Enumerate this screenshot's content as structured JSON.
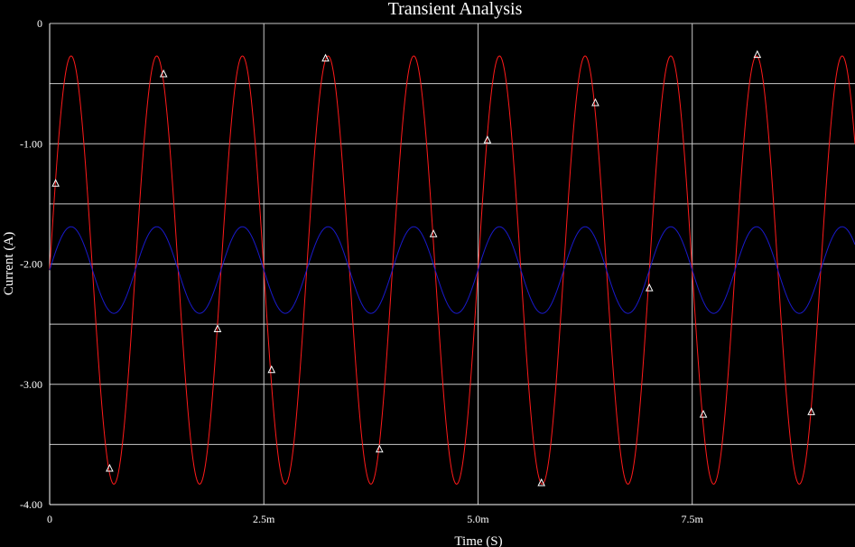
{
  "chart_data": {
    "type": "line",
    "title": "Transient Analysis",
    "xlabel": "Time (S)",
    "ylabel": "Current (A)",
    "xlim": [
      0,
      0.0094
    ],
    "ylim": [
      -4.0,
      0.0
    ],
    "x_ticks": [
      {
        "value": 0,
        "label": "0"
      },
      {
        "value": 0.0025,
        "label": "2.5m"
      },
      {
        "value": 0.005,
        "label": "5.0m"
      },
      {
        "value": 0.0075,
        "label": "7.5m"
      }
    ],
    "y_ticks": [
      {
        "value": 0,
        "label": "0"
      },
      {
        "value": -1.0,
        "label": "-1.00"
      },
      {
        "value": -2.0,
        "label": "-2.00"
      },
      {
        "value": -3.0,
        "label": "-3.00"
      },
      {
        "value": -4.0,
        "label": "-4.00"
      }
    ],
    "grid": true,
    "background": "#000000",
    "grid_color": "#c8c8c8",
    "series": [
      {
        "color": "#ff1a1a",
        "offset": -2.05,
        "amplitude": 1.78,
        "period": 0.001,
        "phase": 0.0
      },
      {
        "color": "#1a1acc",
        "offset": -2.05,
        "amplitude": 0.36,
        "period": 0.001,
        "phase": 0.0
      }
    ],
    "markers": {
      "color": "#ffffff",
      "shape": "triangle",
      "points": [
        [
          7e-05,
          -1.33
        ],
        [
          0.0007,
          -3.7
        ],
        [
          0.00133,
          -0.42
        ],
        [
          0.00196,
          -2.54
        ],
        [
          0.00259,
          -2.88
        ],
        [
          0.00322,
          -0.29
        ],
        [
          0.00385,
          -3.54
        ],
        [
          0.00448,
          -1.75
        ],
        [
          0.00511,
          -0.97
        ],
        [
          0.00574,
          -3.82
        ],
        [
          0.00637,
          -0.66
        ],
        [
          0.007,
          -2.2
        ],
        [
          0.00763,
          -3.25
        ],
        [
          0.00826,
          -0.26
        ],
        [
          0.00889,
          -3.23
        ]
      ]
    }
  }
}
